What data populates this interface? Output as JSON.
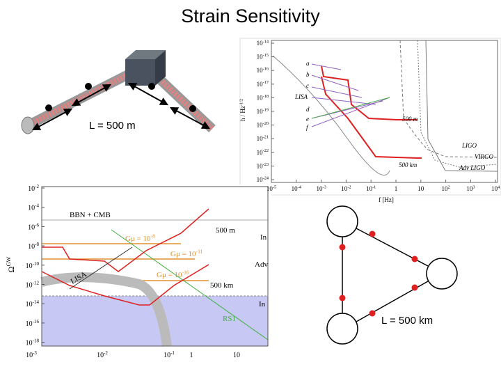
{
  "title": "Strain Sensitivity",
  "detector_label": "L = 500 m",
  "triangle_label": "L = 500 km",
  "strain_plot": {
    "y_label": {
      "base": "h / Hz",
      "exp": "-1/2"
    },
    "x_label": "f [Hz]",
    "yticks": [
      {
        "base": "10",
        "exp": "-14"
      },
      {
        "base": "10",
        "exp": "-15"
      },
      {
        "base": "10",
        "exp": "-16"
      },
      {
        "base": "10",
        "exp": "-17"
      },
      {
        "base": "10",
        "exp": "-18"
      },
      {
        "base": "10",
        "exp": "-19"
      },
      {
        "base": "10",
        "exp": "-20"
      },
      {
        "base": "10",
        "exp": "-21"
      },
      {
        "base": "10",
        "exp": "-22"
      },
      {
        "base": "10",
        "exp": "-23"
      },
      {
        "base": "10",
        "exp": "-24"
      }
    ],
    "xticks": [
      {
        "base": "10",
        "exp": "-5"
      },
      {
        "base": "10",
        "exp": "-4"
      },
      {
        "base": "10",
        "exp": "-3"
      },
      {
        "base": "10",
        "exp": "-2"
      },
      {
        "base": "10",
        "exp": "-1"
      },
      {
        "base": "1",
        "exp": ""
      },
      {
        "base": "10",
        "exp": ""
      },
      {
        "base": "10",
        "exp": "2"
      },
      {
        "base": "10",
        "exp": "3"
      },
      {
        "base": "10",
        "exp": "4"
      }
    ],
    "curve_labels": [
      "a",
      "b",
      "c",
      "LISA",
      "d",
      "e",
      "f",
      "500 m",
      "500 km",
      "LIGO",
      "VIRGO",
      "Adv LIGO"
    ]
  },
  "omega_plot": {
    "y_label": {
      "base": "Ω",
      "exp": "GW"
    },
    "yticks": [
      {
        "base": "10",
        "exp": "-2"
      },
      {
        "base": "10",
        "exp": "-4"
      },
      {
        "base": "10",
        "exp": "-6"
      },
      {
        "base": "10",
        "exp": "-8"
      },
      {
        "base": "10",
        "exp": "-10"
      },
      {
        "base": "10",
        "exp": "-12"
      },
      {
        "base": "10",
        "exp": "-14"
      },
      {
        "base": "10",
        "exp": "-16"
      },
      {
        "base": "10",
        "exp": "-18"
      }
    ],
    "xticks": [
      {
        "base": "10",
        "exp": "-3"
      },
      {
        "base": "10",
        "exp": "-2"
      },
      {
        "base": "10",
        "exp": "-1"
      },
      {
        "base": "1",
        "exp": ""
      },
      {
        "base": "10",
        "exp": ""
      }
    ],
    "labels": {
      "bbn": "BBN + CMB",
      "gmu_8": {
        "base": "Gμ = 10",
        "exp": "-8"
      },
      "gmu_11": {
        "base": "Gμ = 10",
        "exp": "-11"
      },
      "gmu_16": {
        "base": "Gμ = 10",
        "exp": "-16"
      },
      "m500": "500 m",
      "km500": "500 km",
      "lisa": "LISA",
      "rs1": "RS1",
      "cut1": "In",
      "cut2": "Adv",
      "cut3": "In"
    }
  }
}
